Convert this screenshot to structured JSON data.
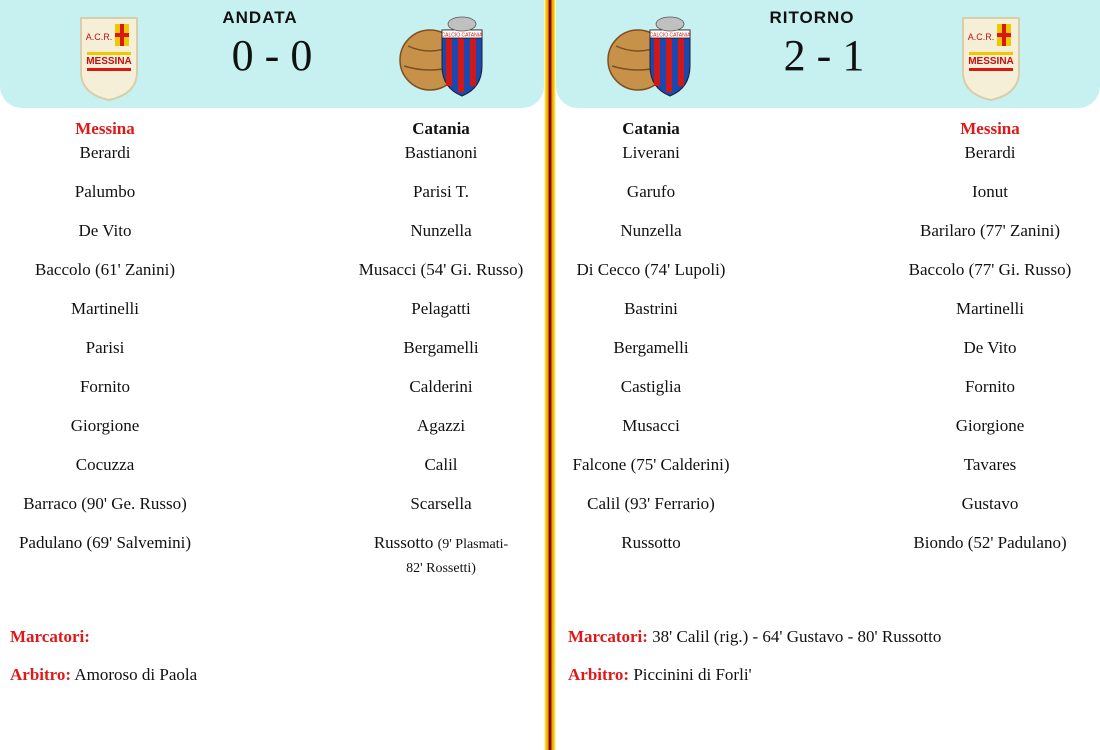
{
  "andata": {
    "title": "ANDATA",
    "score": "0 - 0",
    "home_team": "Messina",
    "away_team": "Catania",
    "home_players": [
      "Berardi",
      "Palumbo",
      "De Vito",
      "Baccolo (61' Zanini)",
      "Martinelli",
      "Parisi",
      "Fornito",
      "Giorgione",
      "Cocuzza",
      "Barraco (90' Ge. Russo)",
      "Padulano (69' Salvemini)"
    ],
    "away_players": [
      "Bastianoni",
      "Parisi T.",
      "Nunzella",
      "Musacci (54' Gi. Russo)",
      "Pelagatti",
      "Bergamelli",
      "Calderini",
      "Agazzi",
      "Calil",
      "Scarsella"
    ],
    "away_last_player_name": "Russotto",
    "away_last_player_sub1": "(9' Plasmati-",
    "away_last_player_sub2": "82' Rossetti)",
    "marcatori_label": "Marcatori:",
    "marcatori": "",
    "arbitro_label": "Arbitro:",
    "arbitro": "Amoroso di Paola"
  },
  "ritorno": {
    "title": "RITORNO",
    "score": "2 - 1",
    "home_team": "Catania",
    "away_team": "Messina",
    "home_players": [
      "Liverani",
      "Garufo",
      "Nunzella",
      "Di Cecco (74' Lupoli)",
      "Bastrini",
      "Bergamelli",
      "Castiglia",
      "Musacci",
      "Falcone (75' Calderini)",
      "Calil (93' Ferrario)",
      "Russotto"
    ],
    "away_players": [
      "Berardi",
      "Ionut",
      "Barilaro (77' Zanini)",
      "Baccolo (77' Gi. Russo)",
      "Martinelli",
      "De Vito",
      "Fornito",
      "Giorgione",
      "Tavares",
      "Gustavo",
      "Biondo (52' Padulano)"
    ],
    "marcatori_label": "Marcatori:",
    "marcatori": "38' Calil (rig.) - 64' Gustavo  - 80' Russotto",
    "arbitro_label": "Arbitro:",
    "arbitro": "Piccinini di Forli'"
  },
  "crests": {
    "messina_text1": "A.C.R.",
    "messina_text2": "MESSINA",
    "catania_text": "CALCIO CATANIA"
  },
  "colors": {
    "header_bg": "#c7f0f0",
    "label_red": "#e01818",
    "messina_red": "#d81818",
    "messina_yellow": "#f0c800",
    "catania_red": "#d01818",
    "catania_blue": "#1848b0"
  }
}
